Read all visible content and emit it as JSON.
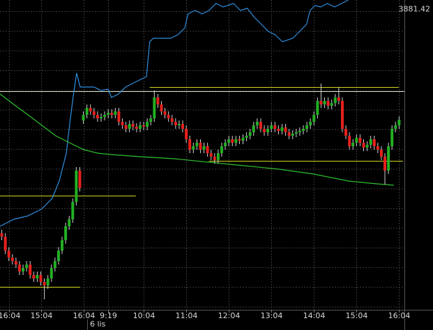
{
  "chart_data": {
    "type": "candlestick",
    "xlim": [
      -0.5,
      113.5
    ],
    "ylim": [
      3450,
      3895
    ],
    "xticks": [
      {
        "value": 2,
        "label": "16:04"
      },
      {
        "value": 11,
        "label": "15:04"
      },
      {
        "value": 23,
        "label": "16:04"
      },
      {
        "value": 30,
        "label": "9:19"
      },
      {
        "value": 40,
        "label": "10:04"
      },
      {
        "value": 52,
        "label": "11:04"
      },
      {
        "value": 64,
        "label": "12:04"
      },
      {
        "value": 76,
        "label": "13:04"
      },
      {
        "value": 88,
        "label": "14:04"
      },
      {
        "value": 100,
        "label": "15:04"
      },
      {
        "value": 112,
        "label": "16:04"
      }
    ],
    "date_label": "6 lis",
    "last_price": 3881.42,
    "grid": true,
    "up_color": "#22b022",
    "down_color": "#e8201c",
    "candles": {
      "x": [
        0,
        1,
        2,
        3,
        4,
        5,
        6,
        7,
        8,
        9,
        10,
        11,
        12,
        13,
        14,
        15,
        16,
        17,
        18,
        19,
        20,
        21,
        22,
        23,
        24,
        25,
        26,
        27,
        28,
        29,
        30,
        31,
        32,
        33,
        34,
        35,
        36,
        37,
        38,
        39,
        40,
        41,
        42,
        43,
        44,
        45,
        46,
        47,
        48,
        49,
        50,
        51,
        52,
        53,
        54,
        55,
        56,
        57,
        58,
        59,
        60,
        61,
        62,
        63,
        64,
        65,
        66,
        67,
        68,
        69,
        70,
        71,
        72,
        73,
        74,
        75,
        76,
        77,
        78,
        79,
        80,
        81,
        82,
        83,
        84,
        85,
        86,
        87,
        88,
        89,
        90,
        91,
        92,
        93,
        94,
        95,
        96,
        97,
        98,
        99,
        100,
        101,
        102,
        103,
        104,
        105,
        106,
        107,
        108,
        109,
        110,
        111,
        112
      ],
      "open": [
        3560,
        3555,
        3535,
        3525,
        3520,
        3515,
        3505,
        3510,
        3515,
        3500,
        3495,
        3500,
        3490,
        3485,
        3495,
        3510,
        3520,
        3535,
        3550,
        3570,
        3580,
        3605,
        3650,
        3722,
        3730,
        3740,
        3735,
        3730,
        3725,
        3727,
        3730,
        3733,
        3730,
        3735,
        3720,
        3715,
        3710,
        3717,
        3713,
        3710,
        3715,
        3713,
        3720,
        3725,
        3755,
        3745,
        3735,
        3730,
        3725,
        3720,
        3715,
        3717,
        3710,
        3695,
        3680,
        3685,
        3690,
        3680,
        3685,
        3675,
        3670,
        3665,
        3675,
        3685,
        3690,
        3695,
        3690,
        3695,
        3693,
        3697,
        3700,
        3705,
        3715,
        3720,
        3710,
        3705,
        3710,
        3715,
        3710,
        3707,
        3712,
        3705,
        3700,
        3703,
        3705,
        3707,
        3710,
        3715,
        3720,
        3730,
        3750,
        3745,
        3750,
        3743,
        3747,
        3755,
        3750,
        3710,
        3700,
        3685,
        3690,
        3697,
        3690,
        3683,
        3687,
        3695,
        3685,
        3680,
        3670,
        3650,
        3685,
        3710,
        3715
      ],
      "high": [
        3565,
        3560,
        3540,
        3530,
        3525,
        3520,
        3515,
        3520,
        3520,
        3505,
        3505,
        3505,
        3495,
        3500,
        3515,
        3525,
        3540,
        3555,
        3575,
        3585,
        3610,
        3655,
        3655,
        3735,
        3745,
        3745,
        3740,
        3735,
        3732,
        3735,
        3738,
        3738,
        3740,
        3740,
        3725,
        3720,
        3722,
        3722,
        3718,
        3720,
        3720,
        3725,
        3730,
        3765,
        3760,
        3750,
        3740,
        3735,
        3730,
        3725,
        3722,
        3722,
        3715,
        3700,
        3690,
        3695,
        3695,
        3690,
        3690,
        3680,
        3675,
        3680,
        3690,
        3695,
        3700,
        3700,
        3700,
        3700,
        3702,
        3705,
        3710,
        3720,
        3725,
        3725,
        3715,
        3715,
        3720,
        3720,
        3715,
        3717,
        3717,
        3710,
        3708,
        3710,
        3712,
        3715,
        3720,
        3725,
        3735,
        3755,
        3775,
        3755,
        3755,
        3752,
        3760,
        3770,
        3755,
        3715,
        3705,
        3695,
        3702,
        3702,
        3695,
        3692,
        3700,
        3700,
        3690,
        3685,
        3675,
        3690,
        3715,
        3720,
        3728
      ],
      "low": [
        3550,
        3530,
        3520,
        3515,
        3510,
        3500,
        3500,
        3505,
        3495,
        3490,
        3490,
        3485,
        3465,
        3480,
        3490,
        3505,
        3515,
        3530,
        3545,
        3565,
        3575,
        3600,
        3620,
        3717,
        3725,
        3730,
        3725,
        3720,
        3720,
        3722,
        3725,
        3725,
        3725,
        3715,
        3710,
        3705,
        3705,
        3708,
        3705,
        3705,
        3708,
        3708,
        3715,
        3720,
        3740,
        3730,
        3725,
        3720,
        3715,
        3710,
        3710,
        3705,
        3690,
        3675,
        3675,
        3680,
        3675,
        3675,
        3670,
        3665,
        3660,
        3660,
        3670,
        3680,
        3685,
        3685,
        3685,
        3688,
        3688,
        3692,
        3695,
        3700,
        3710,
        3705,
        3700,
        3700,
        3705,
        3705,
        3702,
        3702,
        3700,
        3695,
        3695,
        3698,
        3700,
        3702,
        3705,
        3710,
        3715,
        3725,
        3740,
        3740,
        3738,
        3738,
        3742,
        3745,
        3705,
        3695,
        3680,
        3680,
        3685,
        3685,
        3678,
        3678,
        3682,
        3680,
        3675,
        3665,
        3630,
        3645,
        3680,
        3705,
        3710
      ],
      "close": [
        3555,
        3535,
        3525,
        3520,
        3515,
        3505,
        3510,
        3515,
        3500,
        3495,
        3500,
        3490,
        3485,
        3495,
        3510,
        3520,
        3535,
        3550,
        3570,
        3580,
        3605,
        3650,
        3625,
        3730,
        3740,
        3735,
        3730,
        3725,
        3727,
        3730,
        3733,
        3730,
        3735,
        3720,
        3715,
        3710,
        3717,
        3713,
        3710,
        3715,
        3713,
        3720,
        3725,
        3755,
        3745,
        3735,
        3730,
        3725,
        3720,
        3715,
        3717,
        3710,
        3695,
        3680,
        3685,
        3690,
        3680,
        3685,
        3675,
        3670,
        3665,
        3675,
        3685,
        3690,
        3695,
        3690,
        3695,
        3693,
        3697,
        3700,
        3705,
        3715,
        3720,
        3710,
        3705,
        3710,
        3715,
        3710,
        3707,
        3712,
        3705,
        3700,
        3703,
        3705,
        3707,
        3710,
        3715,
        3720,
        3730,
        3750,
        3745,
        3750,
        3743,
        3747,
        3755,
        3750,
        3710,
        3700,
        3685,
        3690,
        3697,
        3690,
        3683,
        3687,
        3695,
        3685,
        3680,
        3670,
        3650,
        3685,
        3710,
        3715,
        3723
      ]
    },
    "lines": [
      {
        "color": "#2f8fe0",
        "x": [
          -0.5,
          3.4,
          7.4,
          11.3,
          14.2,
          16.2,
          18.2,
          19.1,
          20.1,
          21.1,
          22.1,
          24.1,
          26,
          28,
          30,
          30.9,
          32.9,
          34.9,
          36.8,
          38.8,
          40.8,
          41.7,
          42.7,
          44.7,
          47.6,
          49.6,
          51.6,
          52.5,
          54.5,
          56.5,
          58.4,
          60.4,
          62.4,
          65.3,
          67.3,
          69.2,
          71.2,
          73.2,
          75.1,
          77.1,
          79.1,
          82,
          84,
          85.9,
          86.9,
          88.3,
          89.9,
          91.8,
          93.8,
          95.8,
          97.7
        ],
        "values": [
          3570,
          3580,
          3585,
          3595,
          3610,
          3635,
          3675,
          3715,
          3755,
          3790,
          3770,
          3770,
          3770,
          3765,
          3767,
          3755,
          3760,
          3770,
          3775,
          3780,
          3785,
          3835,
          3840,
          3840,
          3840,
          3845,
          3855,
          3875,
          3880,
          3875,
          3880,
          3890,
          3885,
          3890,
          3880,
          3883,
          3870,
          3860,
          3850,
          3845,
          3835,
          3840,
          3850,
          3860,
          3880,
          3887,
          3885,
          3890,
          3885,
          3890,
          3895
        ]
      },
      {
        "color": "#2ec02e",
        "x": [
          -0.5,
          3.4,
          7.4,
          11.3,
          15.2,
          19.1,
          23.1,
          27,
          30.9,
          38.8,
          48.6,
          58.4,
          68.3,
          78.1,
          87.9,
          97.7,
          105.6,
          110.5
        ],
        "values": [
          3760,
          3745,
          3730,
          3715,
          3700,
          3690,
          3680,
          3675,
          3673,
          3670,
          3667,
          3662,
          3657,
          3652,
          3645,
          3635,
          3631,
          3629
        ]
      }
    ],
    "levels": [
      {
        "value": 3764,
        "x": [
          -0.5,
          113.5
        ],
        "color": "#e6e6d2"
      },
      {
        "value": 3770,
        "x": [
          41.7,
          111.9
        ],
        "color": "#d8d820"
      },
      {
        "value": 3664,
        "x": [
          58.4,
          113.1
        ],
        "color": "#d8d820"
      },
      {
        "value": 3614,
        "x": [
          -0.5,
          37.8
        ],
        "color": "#d8d820"
      },
      {
        "value": 3483,
        "x": [
          -0.5,
          22.1
        ],
        "color": "#d8d820"
      }
    ]
  }
}
